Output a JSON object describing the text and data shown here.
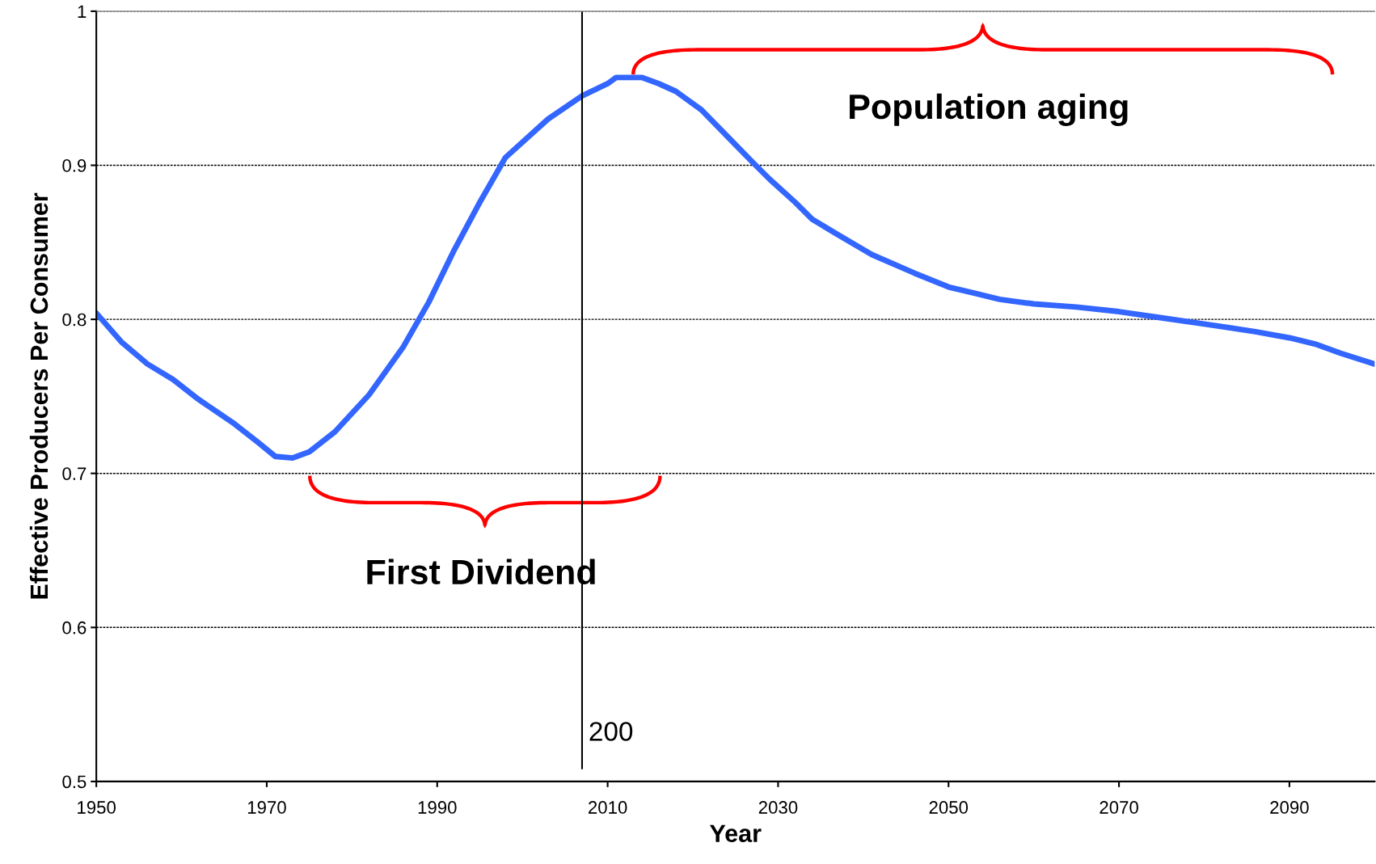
{
  "chart_data": {
    "type": "line",
    "xlabel": "Year",
    "ylabel": "Effective Producers Per Consumer",
    "xlim": [
      1950,
      2100
    ],
    "xticks": [
      1950,
      1970,
      1990,
      2010,
      2030,
      2050,
      2070,
      2090
    ],
    "ylim": [
      0.5,
      1
    ],
    "yticks": [
      0.5,
      0.6,
      0.7,
      0.8,
      0.9,
      1
    ],
    "grid": "y",
    "legend": false,
    "marker": "none",
    "line_style": "solid",
    "series": [
      {
        "color": "#3366ff",
        "x": [
          1950,
          1953,
          1956,
          1959,
          1962,
          1966,
          1969,
          1971,
          1973,
          1975,
          1978,
          1982,
          1986,
          1989,
          1992,
          1995,
          1998,
          2003,
          2007,
          2010,
          2011,
          2014,
          2016,
          2018,
          2021,
          2024,
          2027,
          2029,
          2032,
          2034,
          2037,
          2041,
          2046,
          2050,
          2053,
          2056,
          2060,
          2065,
          2070,
          2075,
          2080,
          2086,
          2090,
          2093,
          2096,
          2100
        ],
        "values": [
          0.804,
          0.785,
          0.771,
          0.761,
          0.748,
          0.733,
          0.72,
          0.711,
          0.71,
          0.714,
          0.727,
          0.751,
          0.782,
          0.811,
          0.845,
          0.876,
          0.905,
          0.93,
          0.945,
          0.953,
          0.957,
          0.957,
          0.953,
          0.948,
          0.936,
          0.919,
          0.902,
          0.891,
          0.876,
          0.865,
          0.855,
          0.842,
          0.83,
          0.821,
          0.817,
          0.813,
          0.81,
          0.808,
          0.805,
          0.801,
          0.797,
          0.792,
          0.788,
          0.784,
          0.778,
          0.771
        ]
      }
    ],
    "ref_lines": [
      {
        "axis": "x",
        "value": 2007,
        "color": "#000000",
        "line_style": "solid"
      }
    ],
    "annotations": [
      "First Dividend",
      "Population aging",
      "200"
    ]
  }
}
